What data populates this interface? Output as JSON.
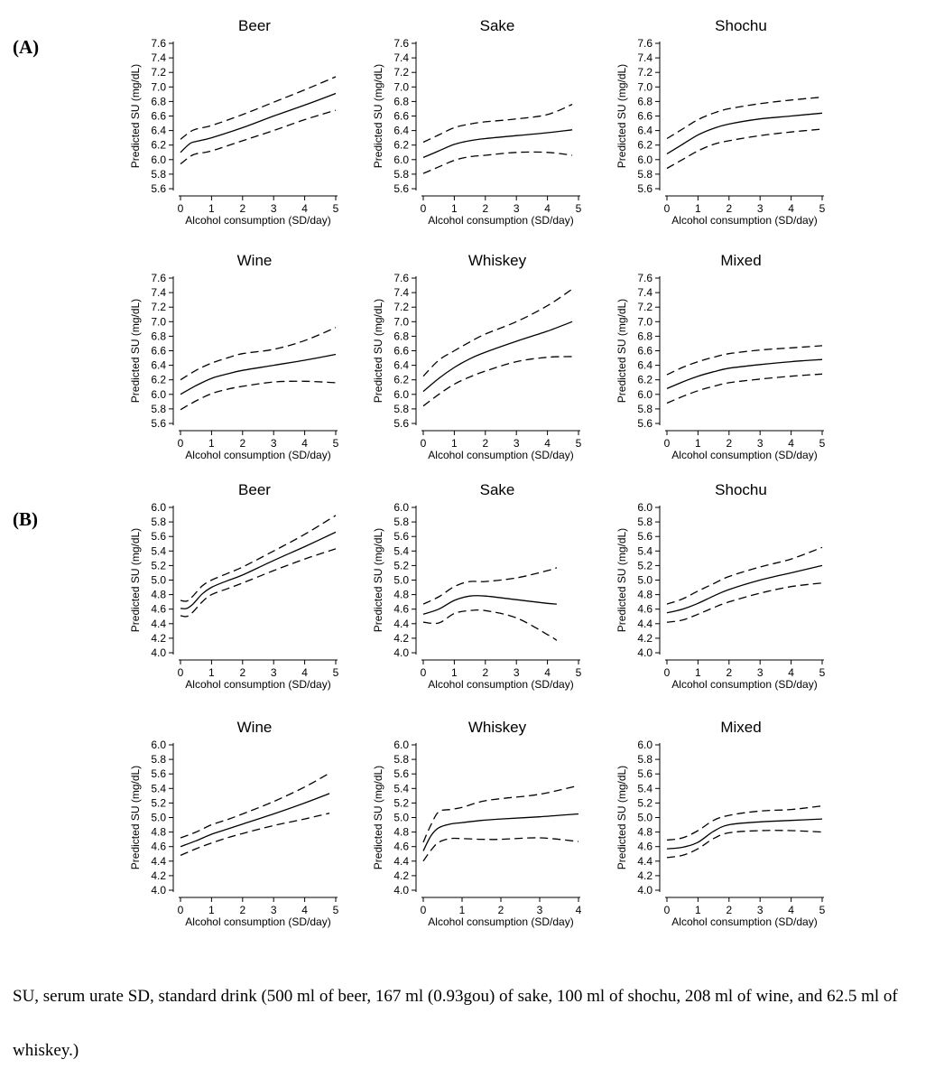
{
  "panel_labels": [
    "(A)",
    "(B)"
  ],
  "caption": "SU, serum urate SD, standard drink (500 ml of beer, 167 ml (0.93gou) of sake, 100 ml of shochu, 208 ml of wine, and 62.5 ml of whiskey.)",
  "colors": {
    "line": "#000000",
    "axis": "#000000",
    "text": "#000000"
  },
  "chart_data": [
    {
      "type": "line",
      "panel": "(A)",
      "title": "Beer",
      "xlabel": "Alcohol consumption (SD/day)",
      "ylabel": "Predicted SU (mg/dL)",
      "xlim": [
        0,
        5
      ],
      "ylim": [
        5.6,
        7.6
      ],
      "xticks": [
        0,
        1,
        2,
        3,
        4,
        5
      ],
      "yticks": [
        5.6,
        5.8,
        6.0,
        6.2,
        6.4,
        6.6,
        6.8,
        7.0,
        7.2,
        7.4,
        7.6
      ],
      "x": [
        0,
        0.3,
        0.5,
        1,
        2,
        3,
        4,
        5
      ],
      "series": [
        {
          "name": "upper 95% CI",
          "style": "dashed",
          "values": [
            6.28,
            6.38,
            6.42,
            6.47,
            6.62,
            6.79,
            6.96,
            7.14
          ]
        },
        {
          "name": "predicted",
          "style": "solid",
          "values": [
            6.1,
            6.22,
            6.25,
            6.3,
            6.44,
            6.6,
            6.75,
            6.91
          ]
        },
        {
          "name": "lower 95% CI",
          "style": "dashed",
          "values": [
            5.94,
            6.04,
            6.08,
            6.12,
            6.26,
            6.4,
            6.55,
            6.68
          ]
        }
      ]
    },
    {
      "type": "line",
      "panel": "(A)",
      "title": "Sake",
      "xlabel": "Alcohol consumption (SD/day)",
      "ylabel": "Predicted SU (mg/dL)",
      "xlim": [
        0,
        5
      ],
      "ylim": [
        5.6,
        7.6
      ],
      "xticks": [
        0,
        1,
        2,
        3,
        4,
        5
      ],
      "yticks": [
        5.6,
        5.8,
        6.0,
        6.2,
        6.4,
        6.6,
        6.8,
        7.0,
        7.2,
        7.4,
        7.6
      ],
      "x": [
        0,
        0.5,
        1,
        1.5,
        2,
        3,
        4,
        4.8
      ],
      "series": [
        {
          "name": "upper 95% CI",
          "style": "dashed",
          "values": [
            6.24,
            6.34,
            6.44,
            6.49,
            6.52,
            6.56,
            6.62,
            6.76
          ]
        },
        {
          "name": "predicted",
          "style": "solid",
          "values": [
            6.03,
            6.12,
            6.21,
            6.26,
            6.29,
            6.33,
            6.37,
            6.41
          ]
        },
        {
          "name": "lower 95% CI",
          "style": "dashed",
          "values": [
            5.81,
            5.9,
            5.99,
            6.04,
            6.06,
            6.1,
            6.1,
            6.06
          ]
        }
      ]
    },
    {
      "type": "line",
      "panel": "(A)",
      "title": "Shochu",
      "xlabel": "Alcohol consumption (SD/day)",
      "ylabel": "Predicted SU (mg/dL)",
      "xlim": [
        0,
        5
      ],
      "ylim": [
        5.6,
        7.6
      ],
      "xticks": [
        0,
        1,
        2,
        3,
        4,
        5
      ],
      "yticks": [
        5.6,
        5.8,
        6.0,
        6.2,
        6.4,
        6.6,
        6.8,
        7.0,
        7.2,
        7.4,
        7.6
      ],
      "x": [
        0,
        0.5,
        1,
        1.5,
        2,
        3,
        4,
        5
      ],
      "series": [
        {
          "name": "upper 95% CI",
          "style": "dashed",
          "values": [
            6.29,
            6.42,
            6.55,
            6.64,
            6.7,
            6.77,
            6.82,
            6.86
          ]
        },
        {
          "name": "predicted",
          "style": "solid",
          "values": [
            6.08,
            6.21,
            6.34,
            6.43,
            6.49,
            6.56,
            6.6,
            6.64
          ]
        },
        {
          "name": "lower 95% CI",
          "style": "dashed",
          "values": [
            5.88,
            6.0,
            6.12,
            6.21,
            6.26,
            6.33,
            6.38,
            6.42
          ]
        }
      ]
    },
    {
      "type": "line",
      "panel": "(A)",
      "title": "Wine",
      "xlabel": "Alcohol consumption (SD/day)",
      "ylabel": "Predicted SU (mg/dL)",
      "xlim": [
        0,
        5
      ],
      "ylim": [
        5.6,
        7.6
      ],
      "xticks": [
        0,
        1,
        2,
        3,
        4,
        5
      ],
      "yticks": [
        5.6,
        5.8,
        6.0,
        6.2,
        6.4,
        6.6,
        6.8,
        7.0,
        7.2,
        7.4,
        7.6
      ],
      "x": [
        0,
        0.5,
        1,
        1.5,
        2,
        3,
        4,
        5
      ],
      "series": [
        {
          "name": "upper 95% CI",
          "style": "dashed",
          "values": [
            6.2,
            6.33,
            6.43,
            6.5,
            6.56,
            6.62,
            6.74,
            6.92
          ]
        },
        {
          "name": "predicted",
          "style": "solid",
          "values": [
            6.0,
            6.12,
            6.22,
            6.28,
            6.33,
            6.4,
            6.47,
            6.55
          ]
        },
        {
          "name": "lower 95% CI",
          "style": "dashed",
          "values": [
            5.79,
            5.91,
            6.01,
            6.07,
            6.11,
            6.17,
            6.18,
            6.16
          ]
        }
      ]
    },
    {
      "type": "line",
      "panel": "(A)",
      "title": "Whiskey",
      "xlabel": "Alcohol consumption (SD/day)",
      "ylabel": "Predicted SU (mg/dL)",
      "xlim": [
        0,
        5
      ],
      "ylim": [
        5.6,
        7.6
      ],
      "xticks": [
        0,
        1,
        2,
        3,
        4,
        5
      ],
      "yticks": [
        5.6,
        5.8,
        6.0,
        6.2,
        6.4,
        6.6,
        6.8,
        7.0,
        7.2,
        7.4,
        7.6
      ],
      "x": [
        0,
        0.5,
        1,
        1.5,
        2,
        3,
        4,
        4.8
      ],
      "series": [
        {
          "name": "upper 95% CI",
          "style": "dashed",
          "values": [
            6.25,
            6.47,
            6.6,
            6.72,
            6.83,
            7.0,
            7.22,
            7.45
          ]
        },
        {
          "name": "predicted",
          "style": "solid",
          "values": [
            6.04,
            6.22,
            6.37,
            6.49,
            6.58,
            6.73,
            6.87,
            7.0
          ]
        },
        {
          "name": "lower 95% CI",
          "style": "dashed",
          "values": [
            5.84,
            6.0,
            6.14,
            6.24,
            6.32,
            6.45,
            6.51,
            6.52
          ]
        }
      ]
    },
    {
      "type": "line",
      "panel": "(A)",
      "title": "Mixed",
      "xlabel": "Alcohol consumption (SD/day)",
      "ylabel": "Predicted SU (mg/dL)",
      "xlim": [
        0,
        5
      ],
      "ylim": [
        5.6,
        7.6
      ],
      "xticks": [
        0,
        1,
        2,
        3,
        4,
        5
      ],
      "yticks": [
        5.6,
        5.8,
        6.0,
        6.2,
        6.4,
        6.6,
        6.8,
        7.0,
        7.2,
        7.4,
        7.6
      ],
      "x": [
        0,
        0.5,
        1,
        1.5,
        2,
        3,
        4,
        5
      ],
      "series": [
        {
          "name": "upper 95% CI",
          "style": "dashed",
          "values": [
            6.27,
            6.37,
            6.45,
            6.51,
            6.56,
            6.61,
            6.64,
            6.67
          ]
        },
        {
          "name": "predicted",
          "style": "solid",
          "values": [
            6.08,
            6.17,
            6.25,
            6.31,
            6.36,
            6.41,
            6.45,
            6.48
          ]
        },
        {
          "name": "lower 95% CI",
          "style": "dashed",
          "values": [
            5.88,
            5.97,
            6.05,
            6.11,
            6.16,
            6.21,
            6.25,
            6.28
          ]
        }
      ]
    },
    {
      "type": "line",
      "panel": "(B)",
      "title": "Beer",
      "xlabel": "Alcohol consumption (SD/day)",
      "ylabel": "Predicted SU (mg/dL)",
      "xlim": [
        0,
        5
      ],
      "ylim": [
        4.0,
        6.0
      ],
      "xticks": [
        0,
        1,
        2,
        3,
        4,
        5
      ],
      "yticks": [
        4.0,
        4.2,
        4.4,
        4.6,
        4.8,
        5.0,
        5.2,
        5.4,
        5.6,
        5.8,
        6.0
      ],
      "x": [
        0,
        0.2,
        0.4,
        0.7,
        1,
        1.5,
        2,
        3,
        4,
        5
      ],
      "series": [
        {
          "name": "upper 95% CI",
          "style": "dashed",
          "values": [
            4.72,
            4.71,
            4.78,
            4.92,
            5.0,
            5.09,
            5.18,
            5.4,
            5.63,
            5.89
          ]
        },
        {
          "name": "predicted",
          "style": "solid",
          "values": [
            4.61,
            4.61,
            4.67,
            4.81,
            4.9,
            4.99,
            5.07,
            5.27,
            5.46,
            5.66
          ]
        },
        {
          "name": "lower 95% CI",
          "style": "dashed",
          "values": [
            4.51,
            4.5,
            4.56,
            4.7,
            4.8,
            4.88,
            4.96,
            5.13,
            5.29,
            5.43
          ]
        }
      ]
    },
    {
      "type": "line",
      "panel": "(B)",
      "title": "Sake",
      "xlabel": "Alcohol consumption (SD/day)",
      "ylabel": "Predicted SU (mg/dL)",
      "xlim": [
        0,
        5
      ],
      "ylim": [
        4.0,
        6.0
      ],
      "xticks": [
        0,
        1,
        2,
        3,
        4,
        5
      ],
      "yticks": [
        4.0,
        4.2,
        4.4,
        4.6,
        4.8,
        5.0,
        5.2,
        5.4,
        5.6,
        5.8,
        6.0
      ],
      "x": [
        0,
        0.5,
        1,
        1.5,
        2,
        3,
        4,
        4.3
      ],
      "series": [
        {
          "name": "upper 95% CI",
          "style": "dashed",
          "values": [
            4.67,
            4.77,
            4.91,
            4.98,
            4.98,
            5.03,
            5.13,
            5.17
          ]
        },
        {
          "name": "predicted",
          "style": "solid",
          "values": [
            4.53,
            4.6,
            4.72,
            4.78,
            4.78,
            4.73,
            4.68,
            4.67
          ]
        },
        {
          "name": "lower 95% CI",
          "style": "dashed",
          "values": [
            4.42,
            4.41,
            4.54,
            4.58,
            4.58,
            4.48,
            4.25,
            4.17
          ]
        }
      ]
    },
    {
      "type": "line",
      "panel": "(B)",
      "title": "Shochu",
      "xlabel": "Alcohol consumption (SD/day)",
      "ylabel": "Predicted SU (mg/dL)",
      "xlim": [
        0,
        5
      ],
      "ylim": [
        4.0,
        6.0
      ],
      "xticks": [
        0,
        1,
        2,
        3,
        4,
        5
      ],
      "yticks": [
        4.0,
        4.2,
        4.4,
        4.6,
        4.8,
        5.0,
        5.2,
        5.4,
        5.6,
        5.8,
        6.0
      ],
      "x": [
        0,
        0.5,
        1,
        1.5,
        2,
        3,
        4,
        5
      ],
      "series": [
        {
          "name": "upper 95% CI",
          "style": "dashed",
          "values": [
            4.67,
            4.74,
            4.85,
            4.95,
            5.05,
            5.18,
            5.29,
            5.45
          ]
        },
        {
          "name": "predicted",
          "style": "solid",
          "values": [
            4.55,
            4.6,
            4.68,
            4.78,
            4.87,
            5.0,
            5.1,
            5.2
          ]
        },
        {
          "name": "lower 95% CI",
          "style": "dashed",
          "values": [
            4.42,
            4.45,
            4.53,
            4.62,
            4.7,
            4.82,
            4.91,
            4.96
          ]
        }
      ]
    },
    {
      "type": "line",
      "panel": "(B)",
      "title": "Wine",
      "xlabel": "Alcohol consumption (SD/day)",
      "ylabel": "Predicted SU (mg/dL)",
      "xlim": [
        0,
        5
      ],
      "ylim": [
        4.0,
        6.0
      ],
      "xticks": [
        0,
        1,
        2,
        3,
        4,
        5
      ],
      "yticks": [
        4.0,
        4.2,
        4.4,
        4.6,
        4.8,
        5.0,
        5.2,
        5.4,
        5.6,
        5.8,
        6.0
      ],
      "x": [
        0,
        0.5,
        1,
        1.5,
        2,
        3,
        4,
        4.8
      ],
      "series": [
        {
          "name": "upper 95% CI",
          "style": "dashed",
          "values": [
            4.72,
            4.8,
            4.9,
            4.97,
            5.05,
            5.22,
            5.42,
            5.61
          ]
        },
        {
          "name": "predicted",
          "style": "solid",
          "values": [
            4.6,
            4.68,
            4.77,
            4.84,
            4.91,
            5.05,
            5.2,
            5.33
          ]
        },
        {
          "name": "lower 95% CI",
          "style": "dashed",
          "values": [
            4.48,
            4.57,
            4.65,
            4.72,
            4.78,
            4.89,
            4.98,
            5.06
          ]
        }
      ]
    },
    {
      "type": "line",
      "panel": "(B)",
      "title": "Whiskey",
      "xlabel": "Alcohol consumption (SD/day)",
      "ylabel": "Predicted SU (mg/dL)",
      "xlim": [
        0,
        4
      ],
      "ylim": [
        4.0,
        6.0
      ],
      "xticks": [
        0,
        1,
        2,
        3,
        4
      ],
      "yticks": [
        4.0,
        4.2,
        4.4,
        4.6,
        4.8,
        5.0,
        5.2,
        5.4,
        5.6,
        5.8,
        6.0
      ],
      "x": [
        0,
        0.2,
        0.4,
        0.7,
        1,
        1.5,
        2,
        3,
        4
      ],
      "series": [
        {
          "name": "upper 95% CI",
          "style": "dashed",
          "values": [
            4.66,
            4.9,
            5.08,
            5.11,
            5.14,
            5.22,
            5.26,
            5.32,
            5.44
          ]
        },
        {
          "name": "predicted",
          "style": "solid",
          "values": [
            4.54,
            4.75,
            4.86,
            4.91,
            4.93,
            4.96,
            4.98,
            5.01,
            5.05
          ]
        },
        {
          "name": "lower 95% CI",
          "style": "dashed",
          "values": [
            4.4,
            4.55,
            4.66,
            4.71,
            4.71,
            4.7,
            4.7,
            4.72,
            4.67
          ]
        }
      ]
    },
    {
      "type": "line",
      "panel": "(B)",
      "title": "Mixed",
      "xlabel": "Alcohol consumption (SD/day)",
      "ylabel": "Predicted SU (mg/dL)",
      "xlim": [
        0,
        5
      ],
      "ylim": [
        4.0,
        6.0
      ],
      "xticks": [
        0,
        1,
        2,
        3,
        4,
        5
      ],
      "yticks": [
        4.0,
        4.2,
        4.4,
        4.6,
        4.8,
        5.0,
        5.2,
        5.4,
        5.6,
        5.8,
        6.0
      ],
      "x": [
        0,
        0.5,
        1,
        1.5,
        2,
        3,
        4,
        5
      ],
      "series": [
        {
          "name": "upper 95% CI",
          "style": "dashed",
          "values": [
            4.69,
            4.72,
            4.82,
            4.96,
            5.03,
            5.09,
            5.11,
            5.16
          ]
        },
        {
          "name": "predicted",
          "style": "solid",
          "values": [
            4.57,
            4.59,
            4.66,
            4.81,
            4.9,
            4.94,
            4.96,
            4.98
          ]
        },
        {
          "name": "lower 95% CI",
          "style": "dashed",
          "values": [
            4.45,
            4.48,
            4.57,
            4.71,
            4.79,
            4.82,
            4.82,
            4.8
          ]
        }
      ]
    }
  ]
}
